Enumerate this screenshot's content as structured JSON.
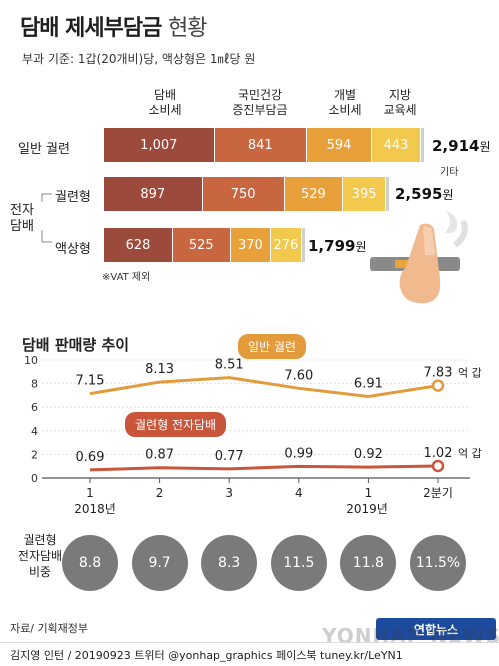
{
  "header": {
    "title_main": "담배 제세부담금",
    "title_sub": "현황",
    "subtitle": "부과 기준: 1갑(20개비)당, 액상형은 1㎖당 원"
  },
  "tax_chart": {
    "columns": [
      "담배\n소비세",
      "국민건강\n증진부담금",
      "개별\n소비세",
      "지방\n교육세"
    ],
    "rows": [
      {
        "label": "일반 궐련",
        "values": [
          1007,
          841,
          594,
          443
        ],
        "labels": [
          "1,007",
          "841",
          "594",
          "443"
        ],
        "total": "2,914",
        "unit": "원"
      },
      {
        "label": "궐련형",
        "values": [
          897,
          750,
          529,
          395
        ],
        "labels": [
          "897",
          "750",
          "529",
          "395"
        ],
        "total": "2,595",
        "unit": "원"
      },
      {
        "label": "액상형",
        "values": [
          628,
          525,
          370,
          276
        ],
        "labels": [
          "628",
          "525",
          "370",
          "276"
        ],
        "total": "1,799",
        "unit": "원"
      }
    ],
    "group_label": "전자\n담배",
    "other_label": "기타",
    "vat_note": "※VAT 제외",
    "colors": [
      "#9c4a3c",
      "#c8663f",
      "#e7a03a",
      "#f2c94c"
    ]
  },
  "chart_data": {
    "type": "line",
    "title": "담배 판매량 추이",
    "x": [
      "1",
      "2",
      "3",
      "4",
      "1",
      "2분기"
    ],
    "year_labels": [
      "2018년",
      "2019년"
    ],
    "ylim": [
      0,
      10
    ],
    "yticks": [
      0,
      2,
      4,
      6,
      8,
      10
    ],
    "series": [
      {
        "name": "일반 궐련",
        "values": [
          7.15,
          8.13,
          8.51,
          7.6,
          6.91,
          7.83
        ],
        "labels": [
          "7.15",
          "8.13",
          "8.51",
          "7.60",
          "6.91",
          "7.83"
        ],
        "color": "#e39a3b"
      },
      {
        "name": "궐련형 전자담배",
        "values": [
          0.69,
          0.87,
          0.77,
          0.99,
          0.92,
          1.02
        ],
        "labels": [
          "0.69",
          "0.87",
          "0.77",
          "0.99",
          "0.92",
          "1.02"
        ],
        "color": "#c9553b"
      }
    ],
    "unit": "억 갑"
  },
  "share": {
    "label": "궐련형\n전자담배\n비중",
    "values": [
      "8.8",
      "9.7",
      "8.3",
      "11.5",
      "11.8",
      "11.5%"
    ]
  },
  "footer": {
    "source": "자료/ 기획재정부",
    "credit": "김지영 인턴 / 20190923  트위터 @yonhap_graphics  페이스북 tuney.kr/LeYN1",
    "logo": "연합뉴스",
    "watermark": "YONHAP NEWS"
  }
}
